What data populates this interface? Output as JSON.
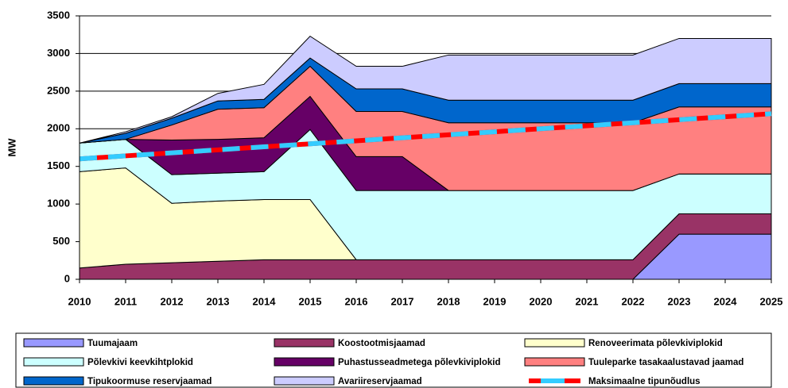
{
  "chart_data": {
    "type": "stacked_area",
    "y_label": "MW",
    "x": [
      2010,
      2011,
      2012,
      2013,
      2014,
      2015,
      2016,
      2017,
      2018,
      2019,
      2020,
      2021,
      2022,
      2023,
      2024,
      2025
    ],
    "xlim": [
      2010,
      2025
    ],
    "xticks": [
      2010,
      2011,
      2012,
      2013,
      2014,
      2015,
      2016,
      2017,
      2018,
      2019,
      2020,
      2021,
      2022,
      2023,
      2024,
      2025
    ],
    "ylim": [
      0,
      3500
    ],
    "yticks": [
      0,
      500,
      1000,
      1500,
      2000,
      2500,
      3000,
      3500
    ],
    "grid": true,
    "legend": "bottom",
    "series": [
      {
        "name": "Tuumajaam",
        "color": "#9999ff",
        "values": [
          0,
          0,
          0,
          0,
          0,
          0,
          0,
          0,
          0,
          0,
          0,
          0,
          0,
          600,
          600,
          600
        ]
      },
      {
        "name": "Koostootmisjaamad",
        "color": "#993366",
        "values": [
          150,
          200,
          220,
          240,
          260,
          260,
          260,
          260,
          260,
          260,
          260,
          260,
          260,
          270,
          270,
          270
        ]
      },
      {
        "name": "Renoveerimata põlevkiviplokid",
        "color": "#ffffcc",
        "values": [
          1280,
          1280,
          790,
          800,
          800,
          800,
          0,
          0,
          0,
          0,
          0,
          0,
          0,
          0,
          0,
          0
        ]
      },
      {
        "name": "Põlevkivi keevkihtplokid",
        "color": "#ccffff",
        "values": [
          380,
          380,
          380,
          370,
          370,
          930,
          920,
          920,
          920,
          920,
          920,
          920,
          920,
          530,
          530,
          530
        ]
      },
      {
        "name": "Puhastusseadmetega põlevkiviplokid",
        "color": "#660066",
        "values": [
          0,
          0,
          460,
          450,
          450,
          440,
          450,
          450,
          0,
          0,
          0,
          0,
          0,
          0,
          0,
          0
        ]
      },
      {
        "name": "Tuuleparke tasakaalustavad jaamad",
        "color": "#ff8080",
        "values": [
          0,
          0,
          200,
          400,
          400,
          400,
          600,
          600,
          900,
          900,
          900,
          900,
          900,
          890,
          890,
          890
        ]
      },
      {
        "name": "Tipukoormuse reservjaamad",
        "color": "#0066cc",
        "values": [
          0,
          80,
          90,
          110,
          110,
          110,
          300,
          300,
          300,
          300,
          300,
          300,
          300,
          310,
          310,
          310
        ]
      },
      {
        "name": "Avariireservjaamad",
        "color": "#ccccff",
        "values": [
          0,
          20,
          20,
          100,
          200,
          290,
          300,
          300,
          600,
          600,
          600,
          600,
          600,
          600,
          600,
          600
        ]
      },
      {
        "name": "Maksimaalne tipunõudlus",
        "kind": "line",
        "color": "#ff0000",
        "dash_color": "#33ccff",
        "values": [
          1600,
          1640,
          1680,
          1720,
          1760,
          1800,
          1840,
          1880,
          1920,
          1960,
          2000,
          2040,
          2080,
          2120,
          2160,
          2200
        ]
      }
    ]
  }
}
